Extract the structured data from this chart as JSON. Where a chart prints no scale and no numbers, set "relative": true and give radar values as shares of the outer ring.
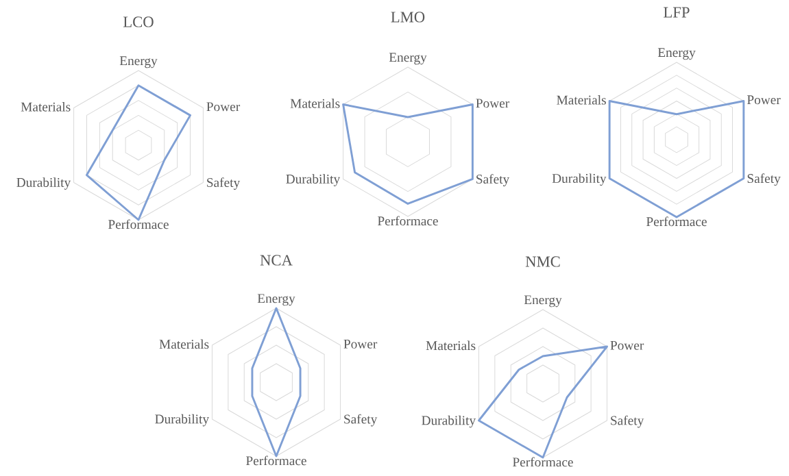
{
  "chart_data": [
    {
      "type": "radar",
      "title": "LCO",
      "categories": [
        "Energy",
        "Power",
        "Safety",
        "Performace",
        "Durability",
        "Materials"
      ],
      "relative": true,
      "grid": true,
      "series": [
        {
          "color": "#7f9fd4",
          "values": [
            0.8,
            0.8,
            0.4,
            1,
            0.8,
            0.4
          ]
        }
      ]
    },
    {
      "type": "radar",
      "title": "LMO",
      "categories": [
        "Energy",
        "Power",
        "Safety",
        "Performace",
        "Durability",
        "Materials"
      ],
      "relative": true,
      "grid": true,
      "series": [
        {
          "color": "#7f9fd4",
          "values": [
            0.33,
            1,
            1,
            0.83,
            0.82,
            1
          ]
        }
      ]
    },
    {
      "type": "radar",
      "title": "LFP",
      "categories": [
        "Energy",
        "Power",
        "Safety",
        "Performace",
        "Durability",
        "Materials"
      ],
      "relative": true,
      "grid": true,
      "series": [
        {
          "color": "#7f9fd4",
          "values": [
            0.33,
            1,
            1,
            1,
            1,
            1
          ]
        }
      ]
    },
    {
      "type": "radar",
      "title": "NCA",
      "categories": [
        "Energy",
        "Power",
        "Safety",
        "Performace",
        "Durability",
        "Materials"
      ],
      "relative": true,
      "grid": true,
      "series": [
        {
          "color": "#7f9fd4",
          "values": [
            1,
            0.375,
            0.375,
            1,
            0.375,
            0.375
          ]
        }
      ]
    },
    {
      "type": "radar",
      "title": "NMC",
      "categories": [
        "Energy",
        "Power",
        "Safety",
        "Performace",
        "Durability",
        "Materials"
      ],
      "relative": true,
      "grid": true,
      "series": [
        {
          "color": "#7f9fd4",
          "values": [
            0.37,
            1,
            0.375,
            1,
            1,
            0.375
          ]
        }
      ]
    }
  ]
}
